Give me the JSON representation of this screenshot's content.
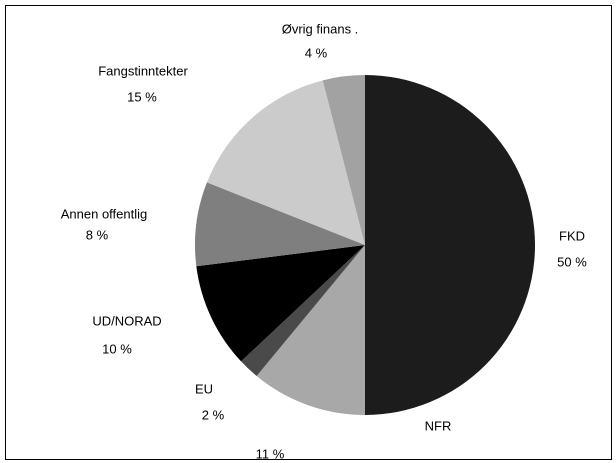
{
  "chart_data": {
    "type": "pie",
    "categories": [
      "FKD",
      "NFR",
      "EU",
      "UD/NORAD",
      "Annen offentlig",
      "Fangstinntekter",
      "Øvrig finans ."
    ],
    "values": [
      50,
      11,
      2,
      10,
      8,
      15,
      4
    ],
    "value_labels": [
      "50  %",
      "11  %",
      "2  %",
      "10  %",
      "8  %",
      "15  %",
      "4  %"
    ],
    "colors": [
      "#1c1c1c",
      "#a8a8a8",
      "#4a4a4a",
      "#000000",
      "#7f7f7f",
      "#cbcbcb",
      "#a2a2a2"
    ]
  }
}
